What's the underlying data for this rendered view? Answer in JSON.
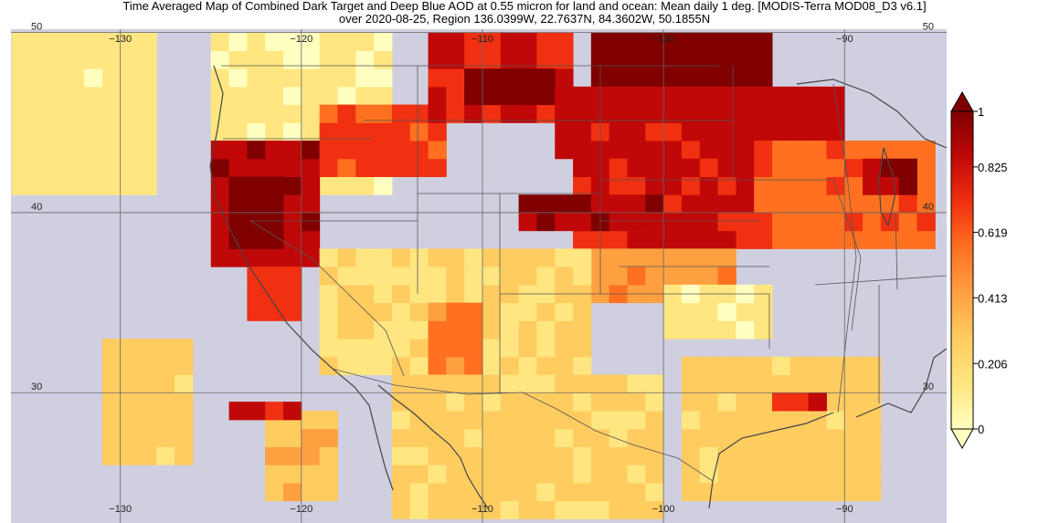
{
  "title": {
    "line1": "Time Averaged Map of Combined Dark Target and Deep Blue AOD at 0.55 micron for land and ocean: Mean daily 1 deg. [MODIS-Terra MOD08_D3 v6.1]",
    "line2": "over 2020-08-25, Region 136.0399W, 22.7637N, 84.3602W, 50.1855N"
  },
  "map": {
    "lon_range": [
      -136.0399,
      -84.3602
    ],
    "lat_range": [
      22.7637,
      50.1855
    ],
    "no_data_color": "#cfcfe0",
    "grid_lon_ticks": [
      -130,
      -120,
      -110,
      -100,
      -90
    ],
    "grid_lat_ticks": [
      50,
      40,
      30
    ],
    "lon_tick_labels": [
      "−130",
      "−120",
      "−110",
      "−100",
      "−90"
    ],
    "lat_tick_labels": [
      "50",
      "40",
      "30"
    ]
  },
  "colorbar": {
    "min": 0,
    "max": 1,
    "tick_labels": [
      "1",
      "0.825",
      "0.619",
      "0.413",
      "0.206",
      "0"
    ],
    "tick_values": [
      1,
      0.825,
      0.619,
      0.413,
      0.206,
      0
    ],
    "colors": [
      "#ffffc0",
      "#ffe680",
      "#ffcc60",
      "#ffa040",
      "#ff7020",
      "#f03010",
      "#c00808",
      "#800000"
    ],
    "over_color": "#800000",
    "under_color": "#ffffc0"
  },
  "aod_regions": [
    {
      "lon": [
        -136,
        -128
      ],
      "lat": [
        41,
        50
      ],
      "value": 0.18
    },
    {
      "lon": [
        -125,
        -115
      ],
      "lat": [
        41,
        50
      ],
      "value": 0.15
    },
    {
      "lon": [
        -125,
        -119
      ],
      "lat": [
        37,
        44
      ],
      "value": 0.85
    },
    {
      "lon": [
        -124,
        -121
      ],
      "lat": [
        38,
        42
      ],
      "value": 0.95
    },
    {
      "lon": [
        -123,
        -120
      ],
      "lat": [
        34,
        37
      ],
      "value": 0.7
    },
    {
      "lon": [
        -119,
        -112
      ],
      "lat": [
        42,
        46
      ],
      "value": 0.65
    },
    {
      "lon": [
        -113,
        -105
      ],
      "lat": [
        45,
        50
      ],
      "value": 0.75
    },
    {
      "lon": [
        -111,
        -106
      ],
      "lat": [
        46,
        48
      ],
      "value": 0.95
    },
    {
      "lon": [
        -104,
        -94
      ],
      "lat": [
        47,
        50
      ],
      "value": 0.95
    },
    {
      "lon": [
        -106,
        -90
      ],
      "lat": [
        43,
        47
      ],
      "value": 0.8
    },
    {
      "lon": [
        -105,
        -95
      ],
      "lat": [
        38,
        43
      ],
      "value": 0.78
    },
    {
      "lon": [
        -108,
        -100
      ],
      "lat": [
        39,
        41
      ],
      "value": 0.85
    },
    {
      "lon": [
        -95,
        -85
      ],
      "lat": [
        38,
        44
      ],
      "value": 0.6
    },
    {
      "lon": [
        -89,
        -86
      ],
      "lat": [
        41,
        43
      ],
      "value": 0.9
    },
    {
      "lon": [
        -104,
        -96
      ],
      "lat": [
        35,
        38
      ],
      "value": 0.45
    },
    {
      "lon": [
        -119,
        -104
      ],
      "lat": [
        31,
        38
      ],
      "value": 0.25
    },
    {
      "lon": [
        -113,
        -110
      ],
      "lat": [
        31,
        35
      ],
      "value": 0.55
    },
    {
      "lon": [
        -100,
        -94
      ],
      "lat": [
        33,
        36
      ],
      "value": 0.12
    },
    {
      "lon": [
        -99,
        -88
      ],
      "lat": [
        24,
        32
      ],
      "value": 0.3
    },
    {
      "lon": [
        -94,
        -91
      ],
      "lat": [
        29,
        30
      ],
      "value": 0.75
    },
    {
      "lon": [
        -122,
        -118
      ],
      "lat": [
        24,
        29
      ],
      "value": 0.35
    },
    {
      "lon": [
        -131,
        -126
      ],
      "lat": [
        26,
        33
      ],
      "value": 0.3
    },
    {
      "lon": [
        -115,
        -100
      ],
      "lat": [
        23,
        31
      ],
      "value": 0.28
    },
    {
      "lon": [
        -124,
        -120
      ],
      "lat": [
        28.5,
        29
      ],
      "value": 0.75
    }
  ]
}
